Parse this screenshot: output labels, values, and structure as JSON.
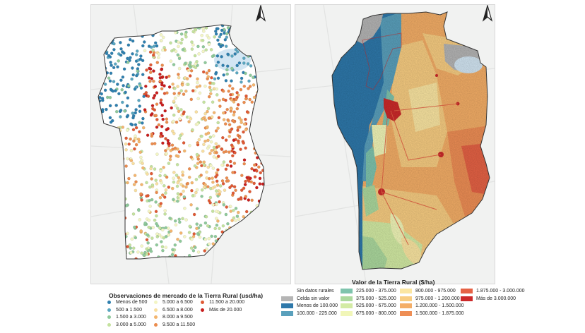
{
  "left_map": {
    "legend_title": "Observaciones de mercado de la Tierra Rural (usd/ha)",
    "classes": [
      {
        "label": "Menos de 500",
        "color": "#2f7fae"
      },
      {
        "label": "500 a 1.500",
        "color": "#5aa6c0"
      },
      {
        "label": "1.500 a 3.000",
        "color": "#8fc99b"
      },
      {
        "label": "3.000 a 5.000",
        "color": "#c4e29e"
      },
      {
        "label": "5.000 a 6.500",
        "color": "#f3f5c4"
      },
      {
        "label": "6.500 a 8.000",
        "color": "#f8dfa0"
      },
      {
        "label": "8.000 a 9.500",
        "color": "#f3b56e"
      },
      {
        "label": "9.500 a 11.500",
        "color": "#eb8c4e"
      },
      {
        "label": "11.500 a 20.000",
        "color": "#df5a35"
      },
      {
        "label": "Más de  20.000",
        "color": "#c81e1e"
      }
    ]
  },
  "right_map": {
    "legend_title": "Valor de la Tierra Rural ($/ha)",
    "classes": [
      {
        "label": "Sin datos rurales",
        "color": null
      },
      {
        "label": "Celda sin valor",
        "color": "#b5b5b5"
      },
      {
        "label": "Menos de 100.000",
        "color": "#2e78aa"
      },
      {
        "label": "100.000 - 225.000",
        "color": "#5aa0bc"
      },
      {
        "label": "225.000 - 375.000",
        "color": "#7fc4ad"
      },
      {
        "label": "375.000 - 525.000",
        "color": "#acd99e"
      },
      {
        "label": "525.000 - 675.000",
        "color": "#d3eba4"
      },
      {
        "label": "675.000 - 800.000",
        "color": "#f1f6b8"
      },
      {
        "label": "800.000 - 975.000",
        "color": "#fbe6a2"
      },
      {
        "label": "975.000 - 1.200.000",
        "color": "#f8cd82"
      },
      {
        "label": "1.200.000 - 1.500.000",
        "color": "#f4ae67"
      },
      {
        "label": "1.500.000 - 1.875.000",
        "color": "#ee8e55"
      },
      {
        "label": "1.875.000 - 3.000.000",
        "color": "#e56245"
      },
      {
        "label": "Más de 3.000.000",
        "color": "#cc2a2a"
      }
    ]
  }
}
